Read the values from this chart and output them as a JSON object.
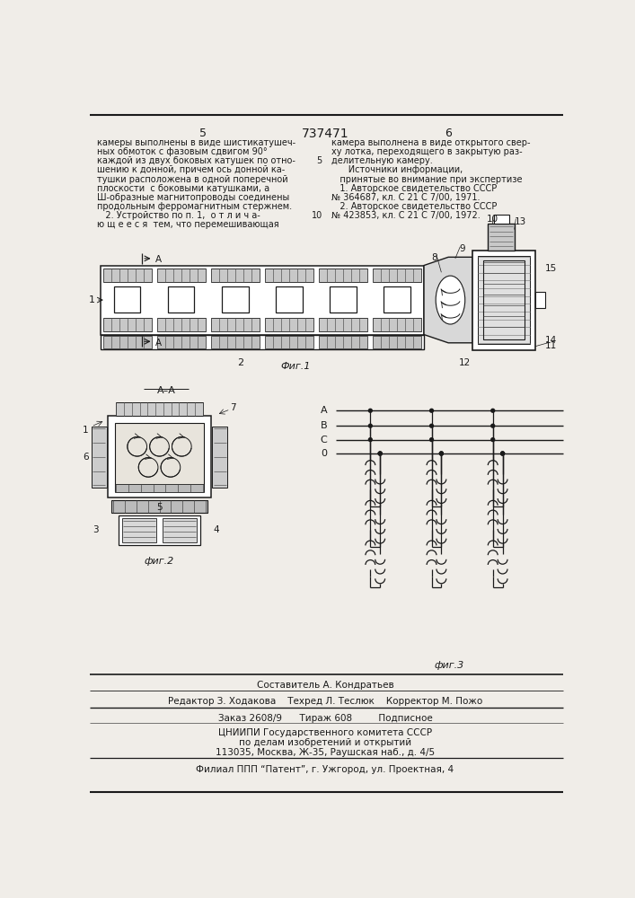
{
  "page_number_left": "5",
  "page_number_center": "737471",
  "page_number_right": "6",
  "left_col_lines": [
    "камеры выполнены в виде шистикатушеч-",
    "ных обмоток с фазовым сдвигом 90°",
    "каждой из двух боковых катушек по отно-",
    "шению к донной, причем ось донной ка-",
    "тушки расположена в одной поперечной",
    "плоскости  с боковыми катушками, а",
    "Ш-образные магнитопроводы соединены",
    "продольным ферромагнитным стержнем.",
    "   2. Устройство по п. 1,  о т л и ч а-",
    "ю щ е е с я  тем, что перемешивающая"
  ],
  "right_col_lines": [
    "камера выполнена в виде открытого свер-",
    "ху лотка, переходящего в закрытую раз-",
    "делительную камеру.",
    "      Источники информации,",
    "   принятые во внимание при экспертизе",
    "   1. Авторское свидетельство СССР",
    "№ 364687, кл. С 21 С 7/00, 1971.",
    "   2. Авторское свидетельство СССР",
    "№ 423853, кл. С 21 С 7/00, 1972."
  ],
  "lineno_5": "5",
  "lineno_10": "10",
  "fig1_label": "Фиг.1",
  "fig2_label": "фиг.2",
  "fig3_label": "фиг.3",
  "bottom_line0": "Составитель А. Кондратьев",
  "bottom_line1": "Редактор З. Ходакова    Техред Л. Теслюк    Корректор М. Пожо",
  "bottom_line2": "Заказ 2608/9      Тираж 608         Подписное",
  "bottom_line3": "ЦНИИПИ Государственного комитета СССР",
  "bottom_line4": "по делам изобретений и открытий",
  "bottom_line5": "113035, Москва, Ж-35, Раушская наб., д. 4/5",
  "bottom_line6": "Филиал ППП “Патент”, г. Ужгород, ул. Проектная, 4",
  "bg_color": "#f0ede8",
  "lc": "#1a1a1a",
  "tc": "#1a1a1a"
}
